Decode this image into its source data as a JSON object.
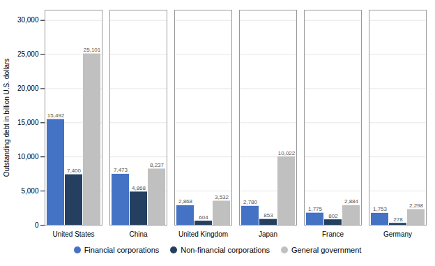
{
  "chart_data": {
    "type": "bar",
    "categories": [
      "United States",
      "China",
      "United Kingdom",
      "Japan",
      "France",
      "Germany"
    ],
    "series": [
      {
        "name": "Financial corporations",
        "color": "#4472c4",
        "values": [
          15492,
          7473,
          2868,
          2780,
          1775,
          1753
        ],
        "value_labels": [
          "15,492",
          "7,473",
          "2,868",
          "2,780",
          "1,775",
          "1,753"
        ]
      },
      {
        "name": "Non-financial corporations",
        "color": "#243f60",
        "values": [
          7400,
          4868,
          604,
          853,
          802,
          278
        ],
        "value_labels": [
          "7,400",
          "4,868",
          "604",
          "853",
          "802",
          "278"
        ]
      },
      {
        "name": "General government",
        "color": "#c0c0c0",
        "values": [
          25101,
          8237,
          3532,
          10022,
          2884,
          2298
        ],
        "value_labels": [
          "25,101",
          "8,237",
          "3,532",
          "10,022",
          "2,884",
          "2,298"
        ]
      }
    ],
    "ylabel": "Outstanding debt in billion U.S. dollars",
    "ylim": [
      0,
      31500
    ],
    "yticks": [
      0,
      {
        "value": 5000,
        "label": "5,000"
      },
      {
        "value": 10000,
        "label": "10,000"
      },
      {
        "value": 15000,
        "label": "15,000"
      },
      {
        "value": 20000,
        "label": "20,000"
      },
      {
        "value": 25000,
        "label": "25,000"
      },
      {
        "value": 30000,
        "label": "30,000"
      }
    ],
    "grid": true,
    "legend": "bottom",
    "data_labels": true
  }
}
